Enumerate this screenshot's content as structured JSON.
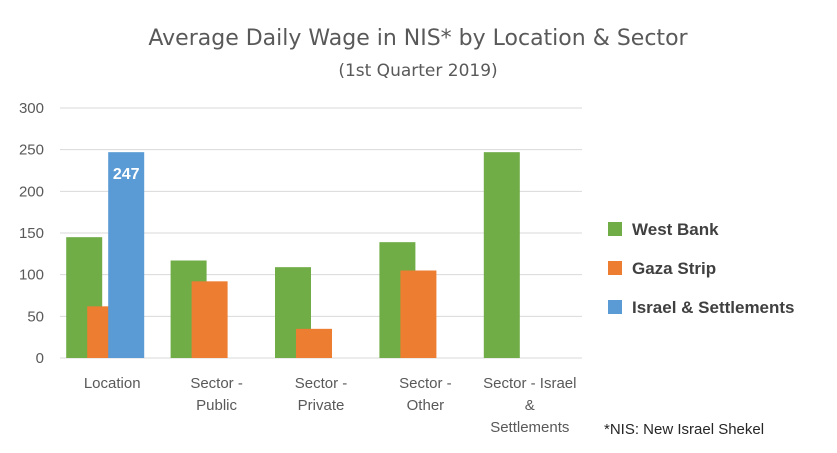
{
  "chart_data": {
    "type": "bar",
    "title": "Average Daily Wage in NIS* by Location & Sector",
    "subtitle": "(1st Quarter 2019)",
    "categories": [
      [
        "Location"
      ],
      [
        "Sector -",
        "Public"
      ],
      [
        "Sector -",
        "Private"
      ],
      [
        "Sector -",
        "Other"
      ],
      [
        "Sector - Israel",
        "&",
        "Settlements"
      ]
    ],
    "series": [
      {
        "name": "West Bank",
        "color": "#70ad47",
        "values": [
          145,
          117,
          109,
          139,
          247
        ]
      },
      {
        "name": "Gaza Strip",
        "color": "#ed7d31",
        "values": [
          62,
          92,
          35,
          105,
          null
        ]
      },
      {
        "name": "Israel & Settlements",
        "color": "#5b9bd5",
        "values": [
          247,
          null,
          null,
          null,
          null
        ]
      }
    ],
    "data_labels": [
      {
        "series": 2,
        "category": 0,
        "text": "247"
      }
    ],
    "ylim": [
      0,
      300
    ],
    "yticks": [
      0,
      50,
      100,
      150,
      200,
      250,
      300
    ],
    "xlabel": "",
    "ylabel": "",
    "grid": true,
    "legend_position": "right",
    "footnote": "*NIS: New Israel Shekel"
  }
}
